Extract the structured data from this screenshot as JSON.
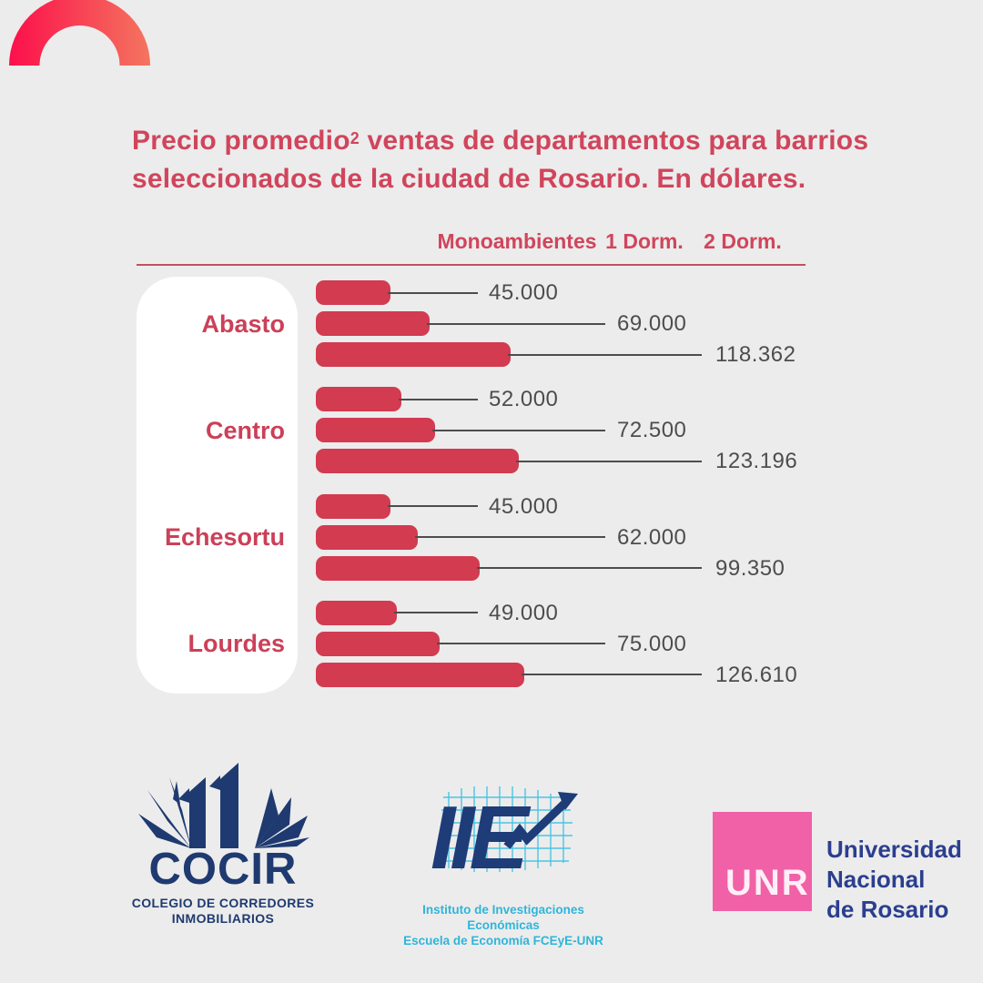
{
  "title": {
    "line1_prefix": "Precio promedio",
    "sup": "2",
    "line1_rest": " ventas de departamentos para barrios",
    "line2": "seleccionados de la ciudad de Rosario. En dólares."
  },
  "chart_data": {
    "type": "bar",
    "orientation": "horizontal",
    "title": "Precio promedio ventas de departamentos para barrios seleccionados de la ciudad de Rosario. En dólares.",
    "unit": "dólares (USD)",
    "categories": [
      "Abasto",
      "Centro",
      "Echesortu",
      "Lourdes"
    ],
    "series": [
      {
        "name": "Monoambientes",
        "values": [
          45000,
          52000,
          45000,
          49000
        ]
      },
      {
        "name": "1 Dorm.",
        "values": [
          69000,
          72500,
          62000,
          75000
        ]
      },
      {
        "name": "2 Dorm.",
        "values": [
          118362,
          123196,
          99350,
          126610
        ]
      }
    ],
    "value_labels": [
      [
        "45.000",
        "69.000",
        "118.362"
      ],
      [
        "52.000",
        "72.500",
        "123.196"
      ],
      [
        "45.000",
        "62.000",
        "99.350"
      ],
      [
        "49.000",
        "75.000",
        "126.610"
      ]
    ],
    "legend_position": "top",
    "grid": false,
    "bar_color": "#D23B50",
    "value_label_color": "#4D4D4D",
    "category_label_color": "#CB4058",
    "header_color": "#D0455C"
  },
  "colors": {
    "background": "#ECECEC",
    "accent_crimson": "#D0455C",
    "arc_gradient_start": "#FC0F4B",
    "arc_gradient_end": "#F4755F",
    "cocir_navy": "#1F3A70",
    "iie_navy": "#1E3C78",
    "iie_cyan": "#2FB5D9",
    "unr_pink": "#F161A7",
    "unr_navy": "#2B3F8F"
  },
  "footer": {
    "cocir": {
      "name": "COCIR",
      "subtitle_line1": "COLEGIO DE CORREDORES",
      "subtitle_line2": "INMOBILIARIOS"
    },
    "iie": {
      "acronym": "IIE",
      "line1": "Instituto de Investigaciones Económicas",
      "line2": "Escuela de Economía FCEyE-UNR"
    },
    "unr": {
      "acronym": "UNR",
      "line1": "Universidad",
      "line2": "Nacional",
      "line3": "de Rosario"
    }
  }
}
